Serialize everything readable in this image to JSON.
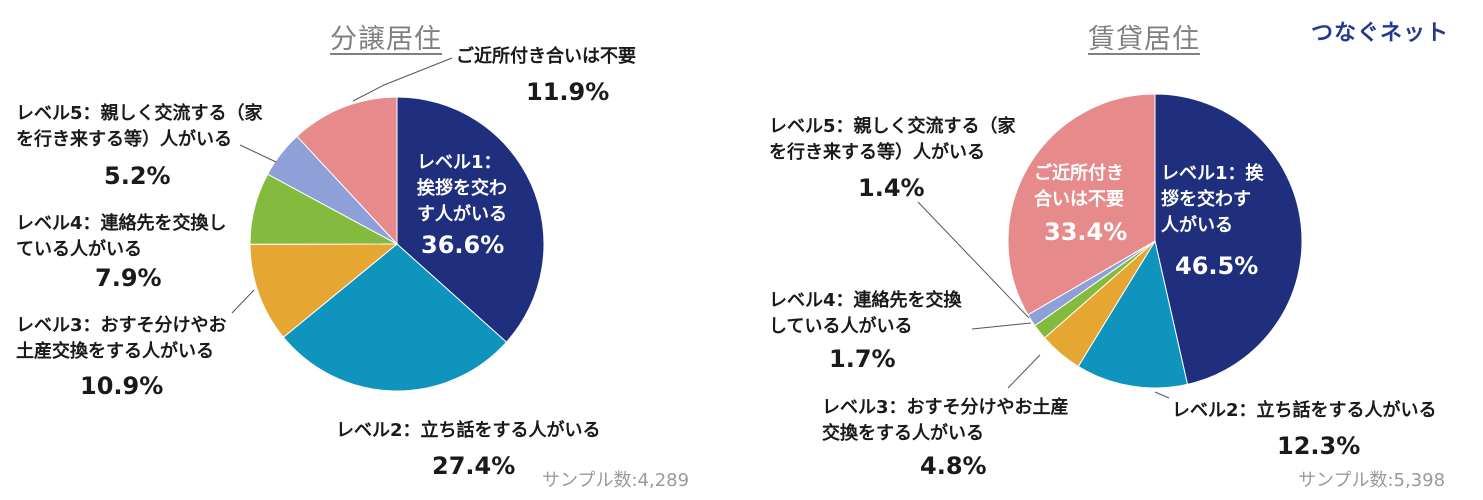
{
  "brand": "つなぐネット",
  "colors": {
    "level1": "#1f2f7e",
    "level2": "#0f94bd",
    "level3": "#e6a632",
    "level4": "#84bb3f",
    "level5": "#8fa0d8",
    "none": "#e68a8b"
  },
  "chart_data": [
    {
      "type": "pie",
      "title": "分譲居住",
      "sample": "サンプル数:4,289",
      "start_angle": 0,
      "direction": "clockwise",
      "slices": [
        {
          "key": "level1",
          "label_lines": [
            "レベル1：",
            "挨拶を交わ",
            "す人がいる"
          ],
          "value": 36.6,
          "pct_label": "36.6%"
        },
        {
          "key": "level2",
          "label_lines": [
            "レベル2：立ち話をする人がいる"
          ],
          "value": 27.4,
          "pct_label": "27.4%"
        },
        {
          "key": "level3",
          "label_lines": [
            "レベル3：おすそ分けやお",
            "土産交換をする人がいる"
          ],
          "value": 10.9,
          "pct_label": "10.9%"
        },
        {
          "key": "level4",
          "label_lines": [
            "レベル4：連絡先を交換し",
            "ている人がいる"
          ],
          "value": 7.9,
          "pct_label": "7.9%"
        },
        {
          "key": "level5",
          "label_lines": [
            "レベル5：親しく交流する（家",
            "を行き来する等）人がいる"
          ],
          "value": 5.2,
          "pct_label": "5.2%"
        },
        {
          "key": "none",
          "label_lines": [
            "ご近所付き合いは不要"
          ],
          "value": 11.9,
          "pct_label": "11.9%"
        }
      ]
    },
    {
      "type": "pie",
      "title": "賃貸居住",
      "sample": "サンプル数:5,398",
      "start_angle": 0,
      "direction": "clockwise",
      "slices": [
        {
          "key": "level1",
          "label_lines": [
            "レベル1：挨",
            "拶を交わす",
            "人がいる"
          ],
          "value": 46.5,
          "pct_label": "46.5%"
        },
        {
          "key": "level2",
          "label_lines": [
            "レベル2：立ち話をする人がいる"
          ],
          "value": 12.3,
          "pct_label": "12.3%"
        },
        {
          "key": "level3",
          "label_lines": [
            "レベル3：おすそ分けやお土産",
            "交換をする人がいる"
          ],
          "value": 4.8,
          "pct_label": "4.8%"
        },
        {
          "key": "level4",
          "label_lines": [
            "レベル4：連絡先を交換",
            "している人がいる"
          ],
          "value": 1.7,
          "pct_label": "1.7%"
        },
        {
          "key": "level5",
          "label_lines": [
            "レベル5：親しく交流する（家",
            "を行き来する等）人がいる"
          ],
          "value": 1.4,
          "pct_label": "1.4%"
        },
        {
          "key": "none",
          "label_lines": [
            "ご近所付き",
            "合いは不要"
          ],
          "value": 33.4,
          "pct_label": "33.4%"
        }
      ]
    }
  ]
}
